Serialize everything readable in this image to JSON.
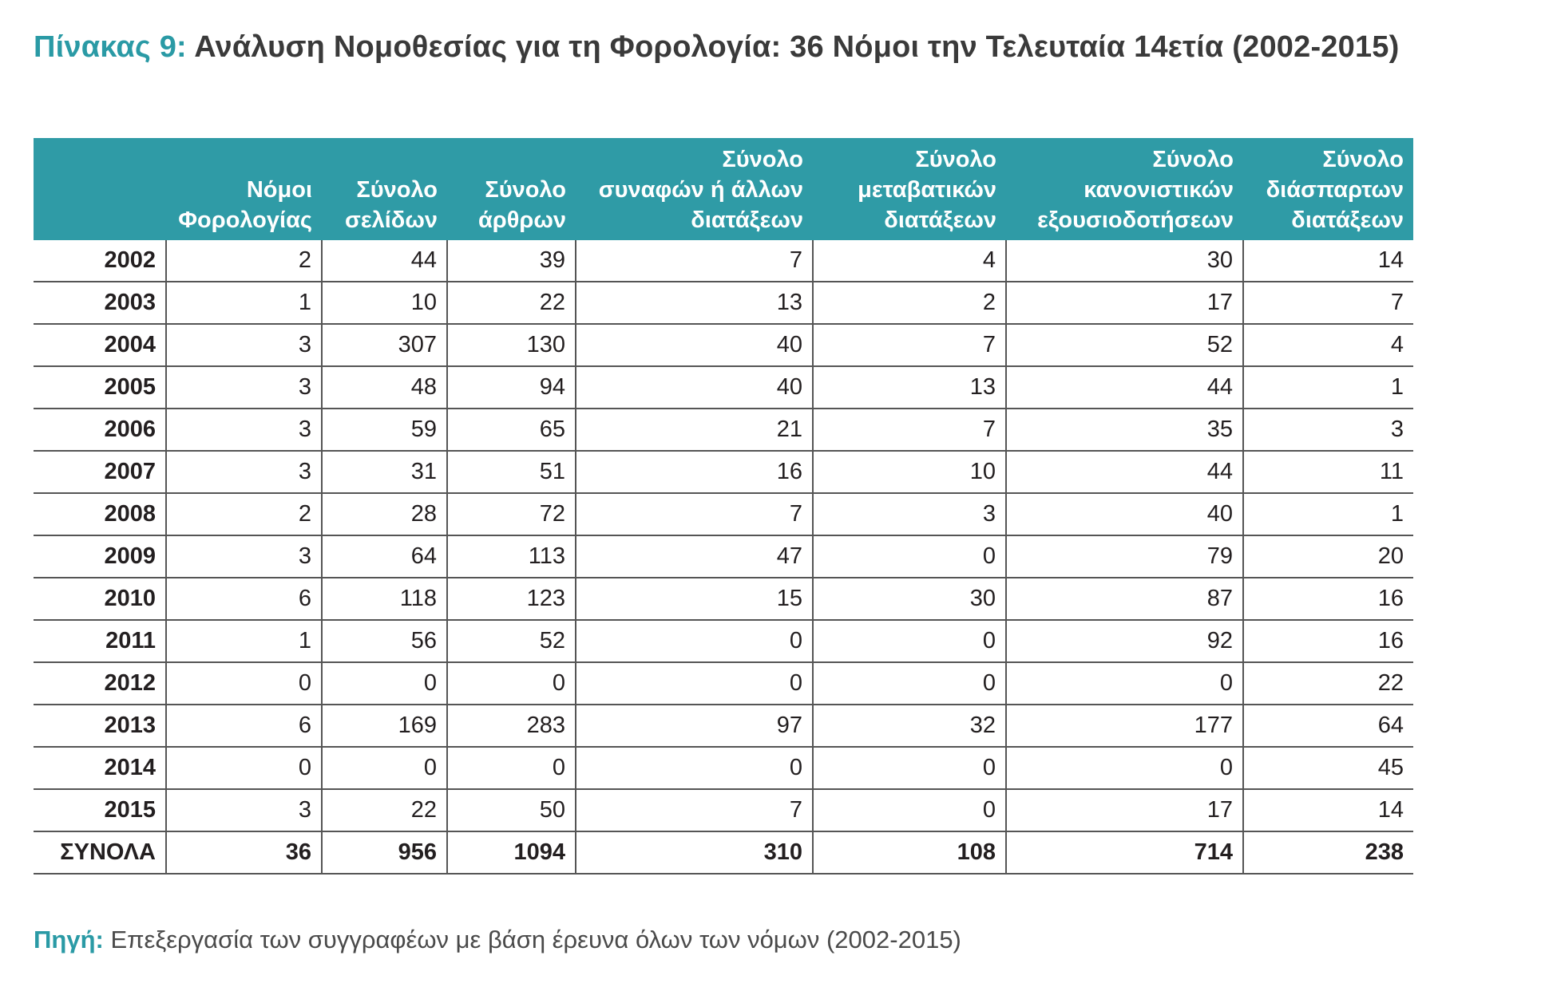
{
  "title": {
    "lead": "Πίνακας 9:",
    "rest": "Ανάλυση Νομοθεσίας για τη Φορολογία: 36 Νόμοι την Τελευταία 14ετία (2002-2015)"
  },
  "colors": {
    "accent": "#2a9aa5",
    "header_bg": "#2f9ba6",
    "header_text": "#ffffff",
    "rule": "#555555"
  },
  "table": {
    "headers": [
      {
        "lines": [
          ""
        ]
      },
      {
        "lines": [
          "Νόμοι",
          "Φορολογίας"
        ]
      },
      {
        "lines": [
          "Σύνολο",
          "σελίδων"
        ]
      },
      {
        "lines": [
          "Σύνολο",
          "άρθρων"
        ]
      },
      {
        "lines": [
          "Σύνολο",
          "συναφών ή άλλων",
          "διατάξεων"
        ]
      },
      {
        "lines": [
          "Σύνολο",
          "μεταβατικών",
          "διατάξεων"
        ]
      },
      {
        "lines": [
          "Σύνολο",
          "κανονιστικών",
          "εξουσιοδοτήσεων"
        ]
      },
      {
        "lines": [
          "Σύνολο",
          "διάσπαρτων",
          "διατάξεων"
        ]
      }
    ],
    "rows": [
      [
        "2002",
        "2",
        "44",
        "39",
        "7",
        "4",
        "30",
        "14"
      ],
      [
        "2003",
        "1",
        "10",
        "22",
        "13",
        "2",
        "17",
        "7"
      ],
      [
        "2004",
        "3",
        "307",
        "130",
        "40",
        "7",
        "52",
        "4"
      ],
      [
        "2005",
        "3",
        "48",
        "94",
        "40",
        "13",
        "44",
        "1"
      ],
      [
        "2006",
        "3",
        "59",
        "65",
        "21",
        "7",
        "35",
        "3"
      ],
      [
        "2007",
        "3",
        "31",
        "51",
        "16",
        "10",
        "44",
        "11"
      ],
      [
        "2008",
        "2",
        "28",
        "72",
        "7",
        "3",
        "40",
        "1"
      ],
      [
        "2009",
        "3",
        "64",
        "113",
        "47",
        "0",
        "79",
        "20"
      ],
      [
        "2010",
        "6",
        "118",
        "123",
        "15",
        "30",
        "87",
        "16"
      ],
      [
        "2011",
        "1",
        "56",
        "52",
        "0",
        "0",
        "92",
        "16"
      ],
      [
        "2012",
        "0",
        "0",
        "0",
        "0",
        "0",
        "0",
        "22"
      ],
      [
        "2013",
        "6",
        "169",
        "283",
        "97",
        "32",
        "177",
        "64"
      ],
      [
        "2014",
        "0",
        "0",
        "0",
        "0",
        "0",
        "0",
        "45"
      ],
      [
        "2015",
        "3",
        "22",
        "50",
        "7",
        "0",
        "17",
        "14"
      ]
    ],
    "total": [
      "ΣΥΝΟΛΑ",
      "36",
      "956",
      "1094",
      "310",
      "108",
      "714",
      "238"
    ]
  },
  "source": {
    "label": "Πηγή:",
    "text": "Επεξεργασία των συγγραφέων με βάση έρευνα όλων των νόμων (2002-2015)"
  }
}
